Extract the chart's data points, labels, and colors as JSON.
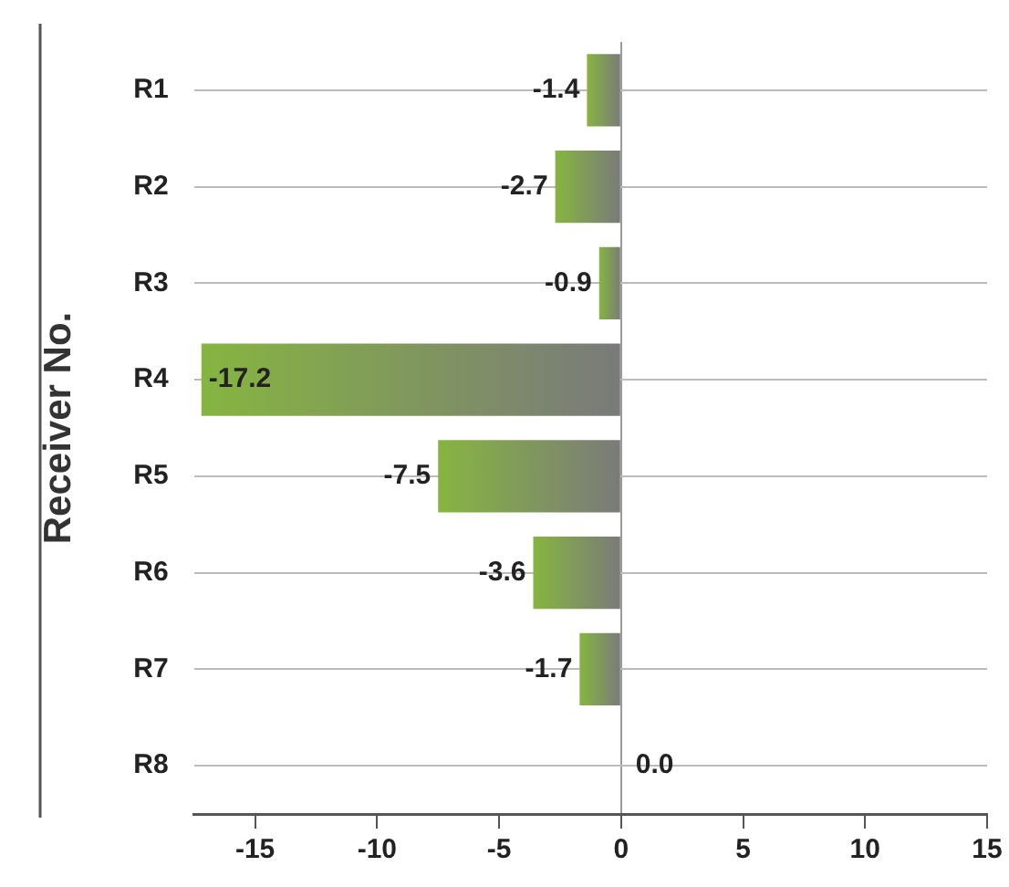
{
  "chart_data": {
    "type": "bar",
    "orientation": "horizontal",
    "ylabel": "Receiver No.",
    "categories": [
      "R1",
      "R2",
      "R3",
      "R4",
      "R5",
      "R6",
      "R7",
      "R8"
    ],
    "values": [
      -1.4,
      -2.7,
      -0.9,
      -17.2,
      -7.5,
      -3.6,
      -1.7,
      0.0
    ],
    "color": "#86b540",
    "xlim": [
      -17.5,
      15
    ],
    "xticks": [
      -15,
      -10,
      -5,
      0,
      5,
      10,
      15
    ],
    "value_labels": [
      "-1.4",
      "-2.7",
      "-0.9",
      "-17.2",
      "-7.5",
      "-3.6",
      "-1.7",
      "0.0"
    ],
    "grid": "y",
    "legend": false
  }
}
